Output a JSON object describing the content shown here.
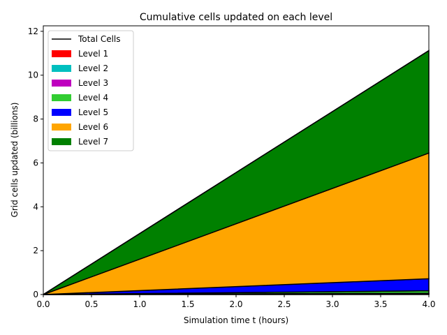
{
  "chart_data": {
    "type": "area",
    "title": "Cumulative cells updated on each level",
    "xlabel": "Simulation time t (hours)",
    "ylabel": "Grid cells updated (billions)",
    "xlim": [
      0,
      4
    ],
    "ylim": [
      0,
      12.25
    ],
    "xticks": [
      0,
      0.5,
      1,
      1.5,
      2,
      2.5,
      3,
      3.5,
      4
    ],
    "xtick_labels": [
      "0.0",
      "0.5",
      "1.0",
      "1.5",
      "2.0",
      "2.5",
      "3.0",
      "3.5",
      "4.0"
    ],
    "yticks": [
      0,
      2,
      4,
      6,
      8,
      10,
      12
    ],
    "ytick_labels": [
      "0",
      "2",
      "4",
      "6",
      "8",
      "10",
      "12"
    ],
    "grid": false,
    "legend_position": "top-left",
    "x": [
      0,
      4
    ],
    "total": {
      "name": "Total Cells",
      "color": "#000000",
      "values": [
        0,
        11.12
      ]
    },
    "series": [
      {
        "name": "Level 1",
        "color": "#ff0000",
        "values": [
          0,
          0.01
        ]
      },
      {
        "name": "Level 2",
        "color": "#00bfbf",
        "values": [
          0,
          0.02
        ]
      },
      {
        "name": "Level 3",
        "color": "#bf00bf",
        "values": [
          0,
          0.03
        ]
      },
      {
        "name": "Level 4",
        "color": "#32cd32",
        "values": [
          0,
          0.11
        ]
      },
      {
        "name": "Level 5",
        "color": "#0000ff",
        "values": [
          0,
          0.55
        ]
      },
      {
        "name": "Level 6",
        "color": "#ffa500",
        "values": [
          0,
          5.73
        ]
      },
      {
        "name": "Level 7",
        "color": "#008000",
        "values": [
          0,
          4.67
        ]
      }
    ]
  }
}
